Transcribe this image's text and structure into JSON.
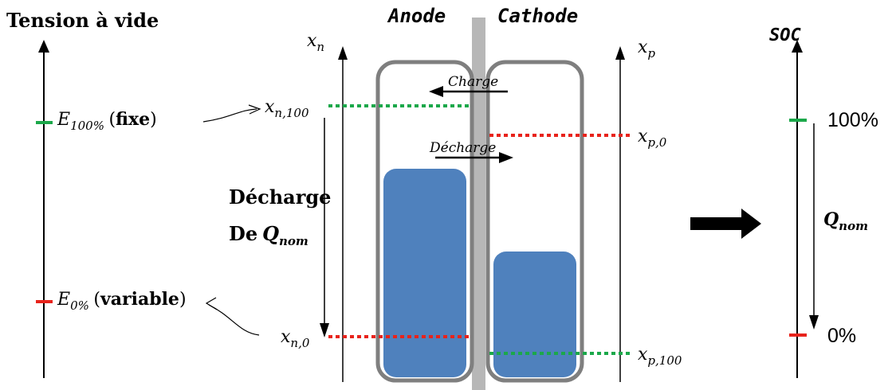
{
  "left_axis": {
    "title": "Tension à vide",
    "e100": {
      "symbol": "E",
      "subscript": "100%",
      "note": "fixe",
      "color": "#1ba84a"
    },
    "e0": {
      "symbol": "E",
      "subscript": "0%",
      "note": "variable",
      "color": "#e8231b"
    }
  },
  "anode_axis": {
    "label": "x",
    "label_sub": "n",
    "x_n100": {
      "sym": "x",
      "sub": "n,100"
    },
    "x_n0": {
      "sym": "x",
      "sub": "n,0"
    }
  },
  "cathode_axis": {
    "label": "x",
    "label_sub": "p",
    "x_p0": {
      "sym": "x",
      "sub": "p,0"
    },
    "x_p100": {
      "sym": "x",
      "sub": "p,100"
    }
  },
  "electrodes": {
    "anode_label": "Anode",
    "cathode_label": "Cathode",
    "charge_label": "Charge",
    "decharge_label": "Décharge"
  },
  "discharge_text": {
    "line1": "Décharge",
    "line2_prefix": "De",
    "q_symbol": "Q",
    "q_sub": "nom"
  },
  "soc_axis": {
    "title": "SOC",
    "top_label": "100%",
    "bottom_label": "0%",
    "q_symbol": "Q",
    "q_sub": "nom"
  },
  "colors": {
    "green": "#1ba84a",
    "red": "#e8231b",
    "fill_blue": "#4f81bd",
    "container_gray": "#7f7f7f",
    "separator_gray": "#b7b7b7"
  }
}
